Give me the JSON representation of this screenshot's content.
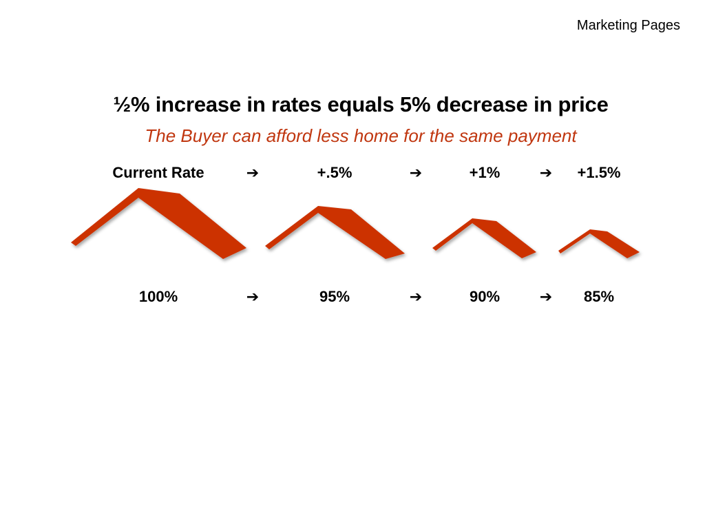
{
  "header": {
    "label": "Marketing Pages"
  },
  "title": "½% increase in rates equals 5% decrease in price",
  "subtitle": "The Buyer can afford less home for the same payment",
  "colors": {
    "accent": "#cc3300"
  },
  "rates": [
    "Current Rate",
    "+.5%",
    "+1%",
    "+1.5%"
  ],
  "prices": [
    "100%",
    "95%",
    "90%",
    "85%"
  ],
  "arrow_icon": "➔"
}
